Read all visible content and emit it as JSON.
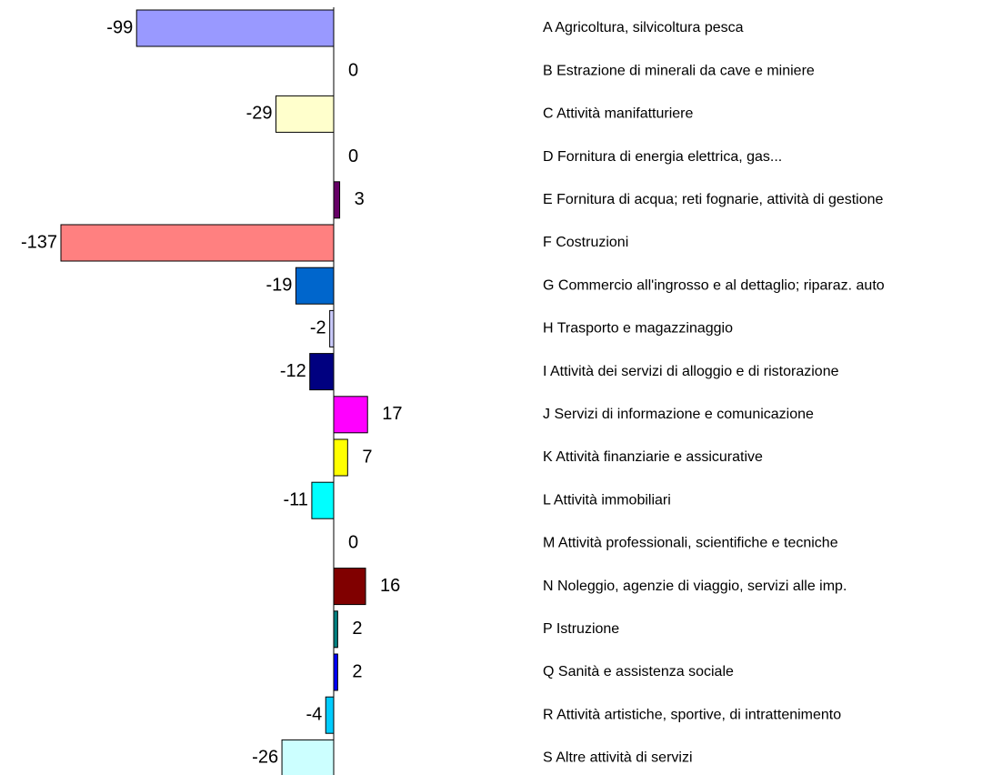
{
  "chart_data": {
    "type": "bar",
    "orientation": "horizontal",
    "categories": [
      "A Agricoltura, silvicoltura pesca",
      "B Estrazione di minerali da cave e miniere",
      "C Attività manifatturiere",
      "D Fornitura di energia elettrica, gas...",
      "E Fornitura di acqua; reti fognarie, attività di gestione",
      "F Costruzioni",
      "G Commercio all'ingrosso e al dettaglio; riparaz. auto",
      "H Trasporto e magazzinaggio",
      "I Attività dei servizi di alloggio e di ristorazione",
      "J Servizi di informazione e comunicazione",
      "K Attività finanziarie e assicurative",
      "L Attività immobiliari",
      "M Attività professionali, scientifiche e tecniche",
      "N Noleggio, agenzie di viaggio, servizi alle imp.",
      "P Istruzione",
      "Q Sanità e assistenza sociale",
      "R Attività artistiche, sportive, di intrattenimento",
      "S Altre attività di servizi"
    ],
    "values": [
      -99,
      0,
      -29,
      0,
      3,
      -137,
      -19,
      -2,
      -12,
      17,
      7,
      -11,
      0,
      16,
      2,
      2,
      -4,
      -26
    ],
    "colors": [
      "#9999ff",
      "#993366",
      "#ffffcc",
      "#ccffff",
      "#660066",
      "#ff8080",
      "#0066cc",
      "#ccccff",
      "#000080",
      "#ff00ff",
      "#ffff00",
      "#00ffff",
      "#800080",
      "#800000",
      "#008080",
      "#0000ff",
      "#00ccff",
      "#ccffff"
    ]
  }
}
